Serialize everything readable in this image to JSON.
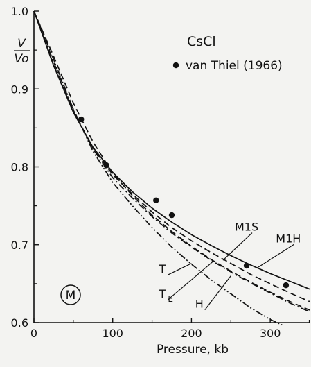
{
  "chart_data": {
    "type": "line",
    "title": "CsCl",
    "xlabel": "Pressure, kb",
    "ylabel_numerator": "V",
    "ylabel_denominator": "Vo",
    "xlim": [
      0,
      350
    ],
    "ylim": [
      0.6,
      1.0
    ],
    "xticks": [
      0,
      100,
      200,
      300
    ],
    "xtick_labels": [
      "0",
      "100",
      "200",
      "300"
    ],
    "yticks": [
      0.6,
      0.7,
      0.8,
      0.9,
      1.0
    ],
    "ytick_labels": [
      "0.6",
      "0.7",
      "0.8",
      "0.9",
      "1.0"
    ],
    "grid": false,
    "panel_mark": "M",
    "legend": {
      "label": "van Thiel (1966)",
      "marker": "filled-circle",
      "position": "top-right"
    },
    "observations": {
      "name": "van Thiel (1966)",
      "x": [
        60,
        92,
        155,
        175,
        270,
        320
      ],
      "y": [
        0.861,
        0.802,
        0.757,
        0.738,
        0.673,
        0.648
      ]
    },
    "series": [
      {
        "name": "M1S",
        "style": "dashed",
        "x": [
          0,
          25,
          50,
          75,
          100,
          125,
          150,
          175,
          200,
          225,
          250,
          275,
          300,
          325,
          350
        ],
        "y": [
          1.0,
          0.931,
          0.871,
          0.824,
          0.79,
          0.765,
          0.742,
          0.722,
          0.705,
          0.69,
          0.676,
          0.662,
          0.65,
          0.638,
          0.627
        ]
      },
      {
        "name": "M1H",
        "style": "solid",
        "x": [
          0,
          25,
          50,
          75,
          100,
          125,
          150,
          175,
          200,
          225,
          250,
          275,
          300,
          325,
          350
        ],
        "y": [
          1.0,
          0.93,
          0.87,
          0.825,
          0.793,
          0.768,
          0.747,
          0.729,
          0.713,
          0.699,
          0.686,
          0.674,
          0.663,
          0.653,
          0.643
        ]
      },
      {
        "name": "T",
        "style": "dash-dot-dot",
        "x": [
          0,
          25,
          50,
          75,
          100,
          125,
          150,
          175,
          200,
          225,
          250,
          275,
          300,
          315
        ],
        "y": [
          1.0,
          0.938,
          0.874,
          0.82,
          0.78,
          0.75,
          0.722,
          0.697,
          0.675,
          0.655,
          0.637,
          0.619,
          0.604,
          0.597
        ]
      },
      {
        "name": "TE",
        "style": "dash-dot",
        "x": [
          0,
          25,
          50,
          75,
          100,
          125,
          150,
          175,
          200,
          225,
          250,
          275,
          300,
          325,
          350
        ],
        "y": [
          1.0,
          0.935,
          0.873,
          0.823,
          0.786,
          0.76,
          0.736,
          0.715,
          0.697,
          0.68,
          0.665,
          0.651,
          0.638,
          0.625,
          0.614
        ]
      },
      {
        "name": "H",
        "style": "dashed",
        "x": [
          0,
          25,
          50,
          75,
          100,
          125,
          150,
          175,
          200,
          225,
          250,
          275,
          300,
          325,
          350
        ],
        "y": [
          1.0,
          0.942,
          0.882,
          0.832,
          0.792,
          0.763,
          0.738,
          0.717,
          0.698,
          0.681,
          0.666,
          0.652,
          0.639,
          0.627,
          0.616
        ]
      }
    ],
    "curve_labels": [
      {
        "text": "M1S",
        "series": "M1S",
        "anchor": [
          270,
          0.718
        ],
        "target": [
          240,
          0.68
        ]
      },
      {
        "text": "M1H",
        "series": "M1H",
        "anchor": [
          323,
          0.703
        ],
        "target": [
          283,
          0.67
        ]
      },
      {
        "text": "T",
        "series": "T",
        "anchor": [
          163,
          0.664
        ],
        "target": [
          200,
          0.676
        ]
      },
      {
        "text": "T",
        "sub": "E",
        "series": "TE",
        "anchor": [
          163,
          0.632
        ],
        "target": [
          228,
          0.679
        ]
      },
      {
        "text": "H",
        "series": "H",
        "anchor": [
          210,
          0.619
        ],
        "target": [
          250,
          0.66
        ]
      }
    ]
  }
}
